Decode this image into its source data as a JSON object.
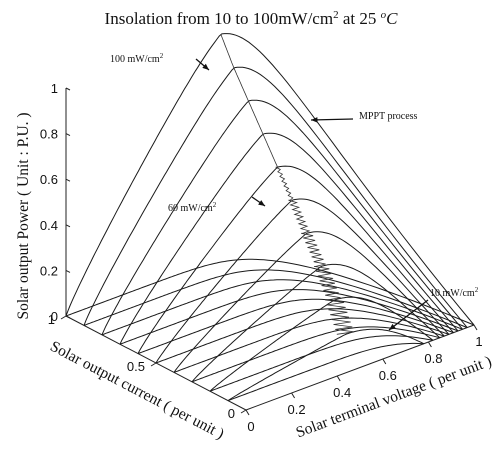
{
  "chart_data": {
    "type": "line",
    "projection": "3d",
    "title": {
      "prefix": "Insolation from 10 to 100",
      "unit_base": "mW/cm",
      "unit_exp": "2",
      "suffix": " at 25 ",
      "temp_sup": "o",
      "temp_unit": "C"
    },
    "axes": {
      "voltage": {
        "label": "Solar terminal voltage ( per unit )",
        "range": [
          0,
          1
        ],
        "ticks": [
          "0",
          "0.2",
          "0.4",
          "0.6",
          "0.8",
          "1"
        ]
      },
      "current": {
        "label": "Solar output current ( per unit )",
        "range": [
          0,
          1
        ],
        "ticks": [
          "0",
          "0.5",
          "1"
        ]
      },
      "power": {
        "label": "Solar output Power ( Unit : P.U. )",
        "range": [
          0,
          1
        ],
        "ticks": [
          "0",
          "0.2",
          "0.4",
          "0.6",
          "0.8",
          "1"
        ]
      }
    },
    "series": [
      {
        "insolation": 10,
        "isc": 0.1,
        "voc": 0.78,
        "pmax": 0.1
      },
      {
        "insolation": 20,
        "isc": 0.2,
        "voc": 0.82,
        "pmax": 0.2
      },
      {
        "insolation": 30,
        "isc": 0.3,
        "voc": 0.85,
        "pmax": 0.3
      },
      {
        "insolation": 40,
        "isc": 0.4,
        "voc": 0.87,
        "pmax": 0.4
      },
      {
        "insolation": 50,
        "isc": 0.5,
        "voc": 0.89,
        "pmax": 0.5
      },
      {
        "insolation": 60,
        "isc": 0.6,
        "voc": 0.91,
        "pmax": 0.6
      },
      {
        "insolation": 70,
        "isc": 0.7,
        "voc": 0.93,
        "pmax": 0.7
      },
      {
        "insolation": 80,
        "isc": 0.8,
        "voc": 0.95,
        "pmax": 0.8
      },
      {
        "insolation": 90,
        "isc": 0.9,
        "voc": 0.97,
        "pmax": 0.9
      },
      {
        "insolation": 100,
        "isc": 1.0,
        "voc": 1.0,
        "pmax": 1.0
      }
    ],
    "annotations": [
      {
        "text": "100 mW/cm",
        "sup": "2"
      },
      {
        "text": "60 mW/cm",
        "sup": "2"
      },
      {
        "text": "MPPT process",
        "sup": ""
      },
      {
        "text": "10 mW/cm",
        "sup": "2"
      }
    ]
  }
}
